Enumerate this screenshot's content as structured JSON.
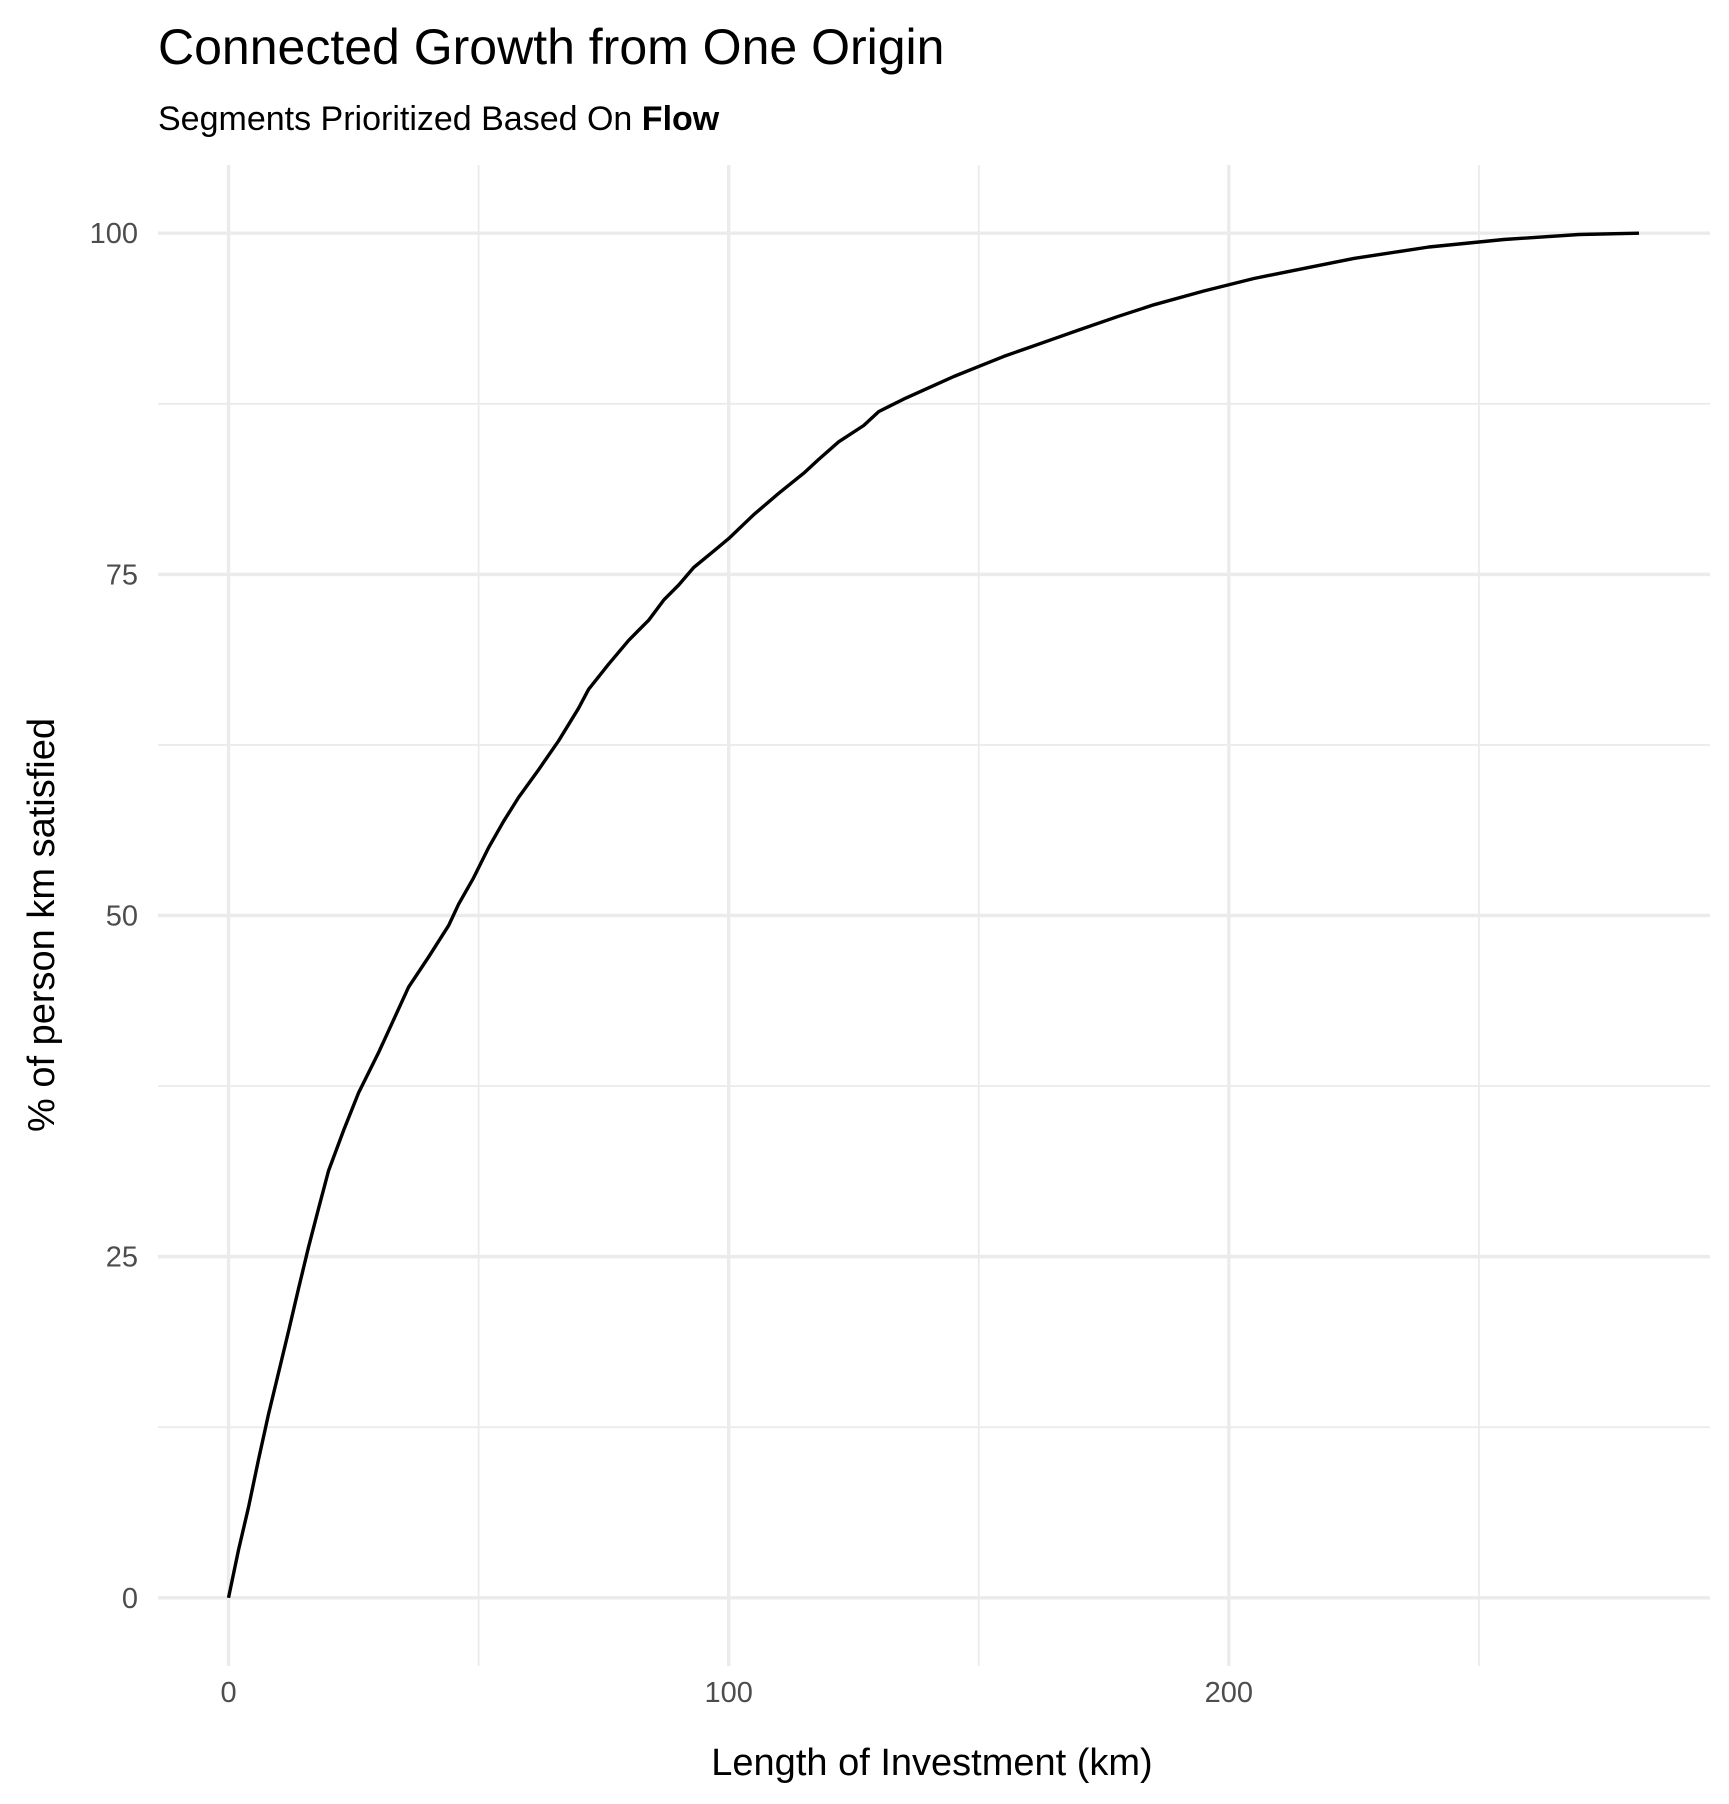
{
  "chart_data": {
    "type": "line",
    "title": "Connected Growth from One Origin",
    "subtitle_prefix": "Segments Prioritized Based On",
    "subtitle_bold": "Flow",
    "xlabel": "Length of Investment (km)",
    "ylabel": "% of person km satisfied",
    "xlim": [
      -14.1,
      296.2
    ],
    "ylim": [
      -5,
      105
    ],
    "x_ticks": [
      0,
      100,
      200
    ],
    "x_tick_labels": [
      "0",
      "100",
      "200"
    ],
    "x_minor_ticks": [
      50,
      150,
      250
    ],
    "y_ticks": [
      0,
      25,
      50,
      75,
      100
    ],
    "y_tick_labels": [
      "0",
      "25",
      "50",
      "75",
      "100"
    ],
    "y_minor_ticks": [
      12.5,
      37.5,
      62.5,
      87.5
    ],
    "grid": true,
    "legend": "none",
    "series": [
      {
        "color": "#000000",
        "x": [
          0,
          2,
          4,
          6,
          8,
          10,
          12,
          14,
          16,
          18,
          20,
          23,
          26,
          30,
          33,
          36,
          40,
          44,
          46,
          49,
          52,
          55,
          58,
          62,
          66,
          70,
          72,
          76,
          80,
          84,
          87,
          90,
          93,
          97,
          100,
          105,
          110,
          115,
          118,
          122,
          127,
          130,
          135,
          140,
          145,
          150,
          155,
          160,
          165,
          170,
          178,
          185,
          195,
          205,
          215,
          225,
          240,
          255,
          270,
          282
        ],
        "y": [
          0,
          3.8,
          7.2,
          11.0,
          14.6,
          17.9,
          21.2,
          24.6,
          27.9,
          31.0,
          34.0,
          37.2,
          40.2,
          43.4,
          46.0,
          48.6,
          51.0,
          53.5,
          55.2,
          57.3,
          59.7,
          61.8,
          63.7,
          65.9,
          68.2,
          70.8,
          72.3,
          74.3,
          76.2,
          77.8,
          79.4,
          80.6,
          82.0,
          83.3,
          84.3,
          86.2,
          87.9,
          89.5,
          90.6,
          92.0,
          93.3,
          94.4,
          95.4,
          96.3,
          97.2,
          98.0,
          98.8,
          99.5,
          100.2,
          100.9,
          102.0,
          102.9,
          104.0,
          105.0,
          105.8,
          106.6,
          107.5,
          108.1,
          108.5,
          108.6
        ]
      }
    ]
  }
}
